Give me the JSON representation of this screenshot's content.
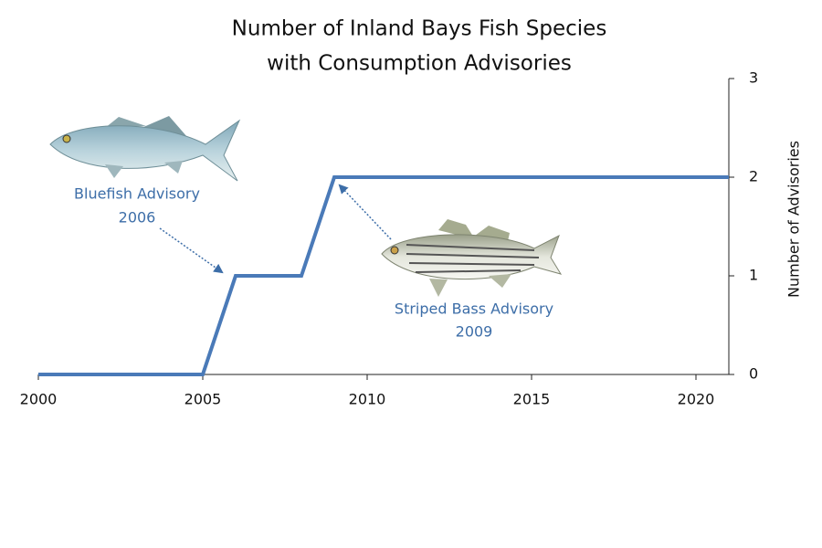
{
  "chart_data": {
    "type": "line",
    "title": [
      "Number of Inland Bays Fish Species",
      "with Consumption Advisories"
    ],
    "y_label": "Number of Advisories",
    "x": [
      2000,
      2005,
      2006,
      2008,
      2009,
      2021
    ],
    "values": [
      0,
      0,
      1,
      1,
      2,
      2
    ],
    "color": "#4a7ab8",
    "xlim": [
      2000,
      2021
    ],
    "xticks": [
      2000,
      2005,
      2010,
      2015,
      2020
    ],
    "ylim": [
      0,
      3
    ],
    "yticks": [
      0,
      1,
      2,
      3
    ],
    "annotations": [
      [
        "Bluefish Advisory",
        "2006"
      ],
      [
        "Striped Bass Advisory",
        "2009"
      ]
    ]
  }
}
